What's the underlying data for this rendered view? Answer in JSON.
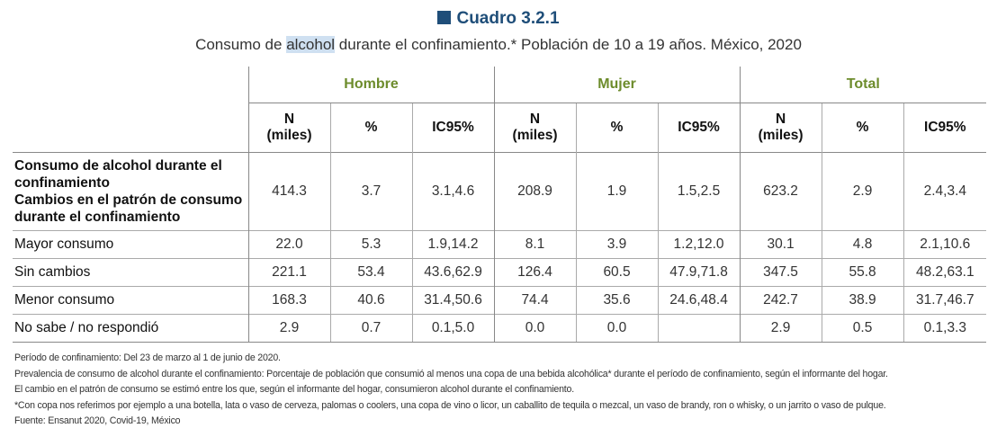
{
  "title": "Cuadro 3.2.1",
  "subtitle_pre": "Consumo de ",
  "subtitle_highlight": "alcohol",
  "subtitle_post": " durante el confinamiento.* Población de 10 a 19 años. México, 2020",
  "groups": [
    "Hombre",
    "Mujer",
    "Total"
  ],
  "col_headers": {
    "n_line1": "N",
    "n_line2": "(miles)",
    "pct": "%",
    "ic": "IC95%"
  },
  "rows": [
    {
      "label_lines": [
        "Consumo de alcohol durante el",
        "confinamiento",
        "Cambios en el patrón de consumo",
        "durante el confinamiento"
      ],
      "values": [
        "414.3",
        "3.7",
        "3.1,4.6",
        "208.9",
        "1.9",
        "1.5,2.5",
        "623.2",
        "2.9",
        "2.4,3.4"
      ]
    },
    {
      "label": "Mayor consumo",
      "values": [
        "22.0",
        "5.3",
        "1.9,14.2",
        "8.1",
        "3.9",
        "1.2,12.0",
        "30.1",
        "4.8",
        "2.1,10.6"
      ]
    },
    {
      "label": "Sin cambios",
      "values": [
        "221.1",
        "53.4",
        "43.6,62.9",
        "126.4",
        "60.5",
        "47.9,71.8",
        "347.5",
        "55.8",
        "48.2,63.1"
      ]
    },
    {
      "label": "Menor consumo",
      "values": [
        "168.3",
        "40.6",
        "31.4,50.6",
        "74.4",
        "35.6",
        "24.6,48.4",
        "242.7",
        "38.9",
        "31.7,46.7"
      ]
    },
    {
      "label": "No sabe / no respondió",
      "values": [
        "2.9",
        "0.7",
        "0.1,5.0",
        "0.0",
        "0.0",
        "",
        "2.9",
        "0.5",
        "0.1,3.3"
      ]
    }
  ],
  "notes": [
    "Período de confinamiento: Del 23 de marzo al 1 de junio de 2020.",
    "Prevalencia de consumo de alcohol durante el confinamiento: Porcentaje de población que consumió al menos una copa de una bebida alcohólica* durante el período de confinamiento, según el informante del hogar.",
    "El cambio en el patrón de consumo se estimó entre los que, según el informante del hogar, consumieron alcohol durante el confinamiento.",
    "*Con copa nos referimos por ejemplo a una botella, lata o vaso de cerveza, palomas o coolers, una copa de vino o licor, un caballito de tequila o mezcal, un vaso de brandy, ron o whisky, o un jarrito o vaso de pulque.",
    "Fuente: Ensanut 2020, Covid-19, México"
  ],
  "colors": {
    "title": "#1f4e79",
    "group_header": "#6d8c2c",
    "highlight": "#cfe0f1"
  }
}
